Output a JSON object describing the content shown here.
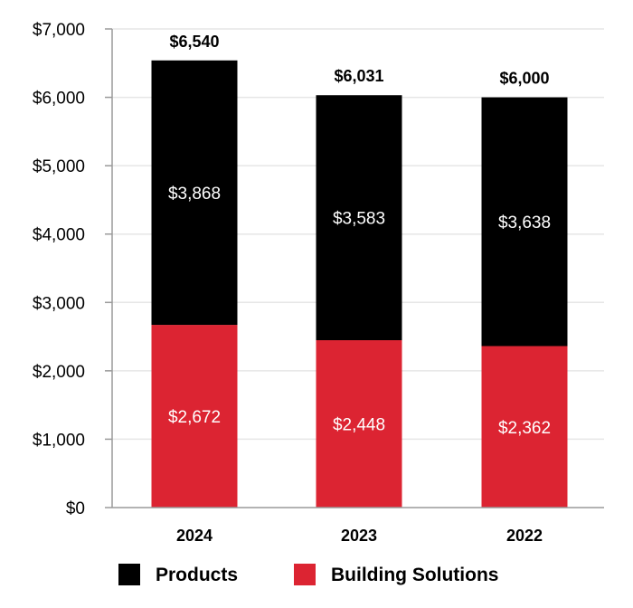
{
  "chart_data": {
    "type": "bar",
    "stacked": true,
    "title": "",
    "xlabel": "",
    "ylabel": "",
    "ylim": [
      0,
      7000
    ],
    "y_ticks": [
      "$0",
      "$1,000",
      "$2,000",
      "$3,000",
      "$4,000",
      "$5,000",
      "$6,000",
      "$7,000"
    ],
    "y_tick_values": [
      0,
      1000,
      2000,
      3000,
      4000,
      5000,
      6000,
      7000
    ],
    "grid": true,
    "legend_position": "bottom",
    "categories": [
      "2024",
      "2023",
      "2022"
    ],
    "series": [
      {
        "name": "Building Solutions",
        "values": [
          2672,
          2448,
          2362
        ],
        "labels": [
          "$2,672",
          "$2,448",
          "$2,362"
        ],
        "color": "#dc2432"
      },
      {
        "name": "Products",
        "values": [
          3868,
          3583,
          3638
        ],
        "labels": [
          "$3,868",
          "$3,583",
          "$3,638"
        ],
        "color": "#000000"
      }
    ],
    "totals": [
      6540,
      6031,
      6000
    ],
    "total_labels": [
      "$6,540",
      "$6,031",
      "$6,000"
    ],
    "legend": [
      {
        "name": "Products",
        "color": "#000000"
      },
      {
        "name": "Building Solutions",
        "color": "#dc2432"
      }
    ]
  }
}
